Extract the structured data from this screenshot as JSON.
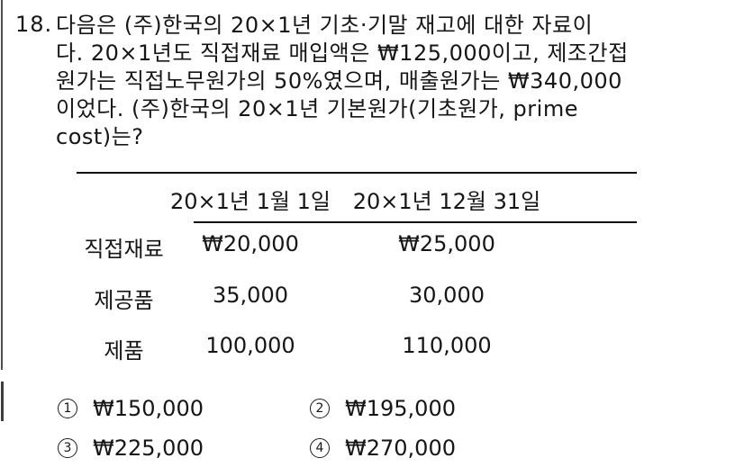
{
  "question": {
    "number": "18.",
    "lines": [
      "다음은 (주)한국의 20×1년 기초·기말 재고에 대한 자료이",
      "다. 20×1년도 직접재료 매입액은 ₩125,000이고, 제조간접",
      "원가는 직접노무원가의 50%였으며, 매출원가는 ₩340,000",
      "이었다. (주)한국의 20×1년 기본원가(기초원가, prime",
      "cost)는?"
    ]
  },
  "table": {
    "col_headers": [
      "20×1년 1월 1일",
      "20×1년 12월 31일"
    ],
    "rows": [
      {
        "label": "직접재료",
        "begin": "₩20,000",
        "end": "₩25,000"
      },
      {
        "label": "제공품",
        "begin": "35,000",
        "end": "30,000"
      },
      {
        "label": "제품",
        "begin": "100,000",
        "end": "110,000"
      }
    ]
  },
  "choices": [
    {
      "num": "1",
      "value": "₩150,000"
    },
    {
      "num": "2",
      "value": "₩195,000"
    },
    {
      "num": "3",
      "value": "₩225,000"
    },
    {
      "num": "4",
      "value": "₩270,000"
    }
  ],
  "colors": {
    "text": "#161616",
    "rule": "#0d0d0d",
    "scan_line": "#4d4d4d",
    "background": "#ffffff"
  }
}
